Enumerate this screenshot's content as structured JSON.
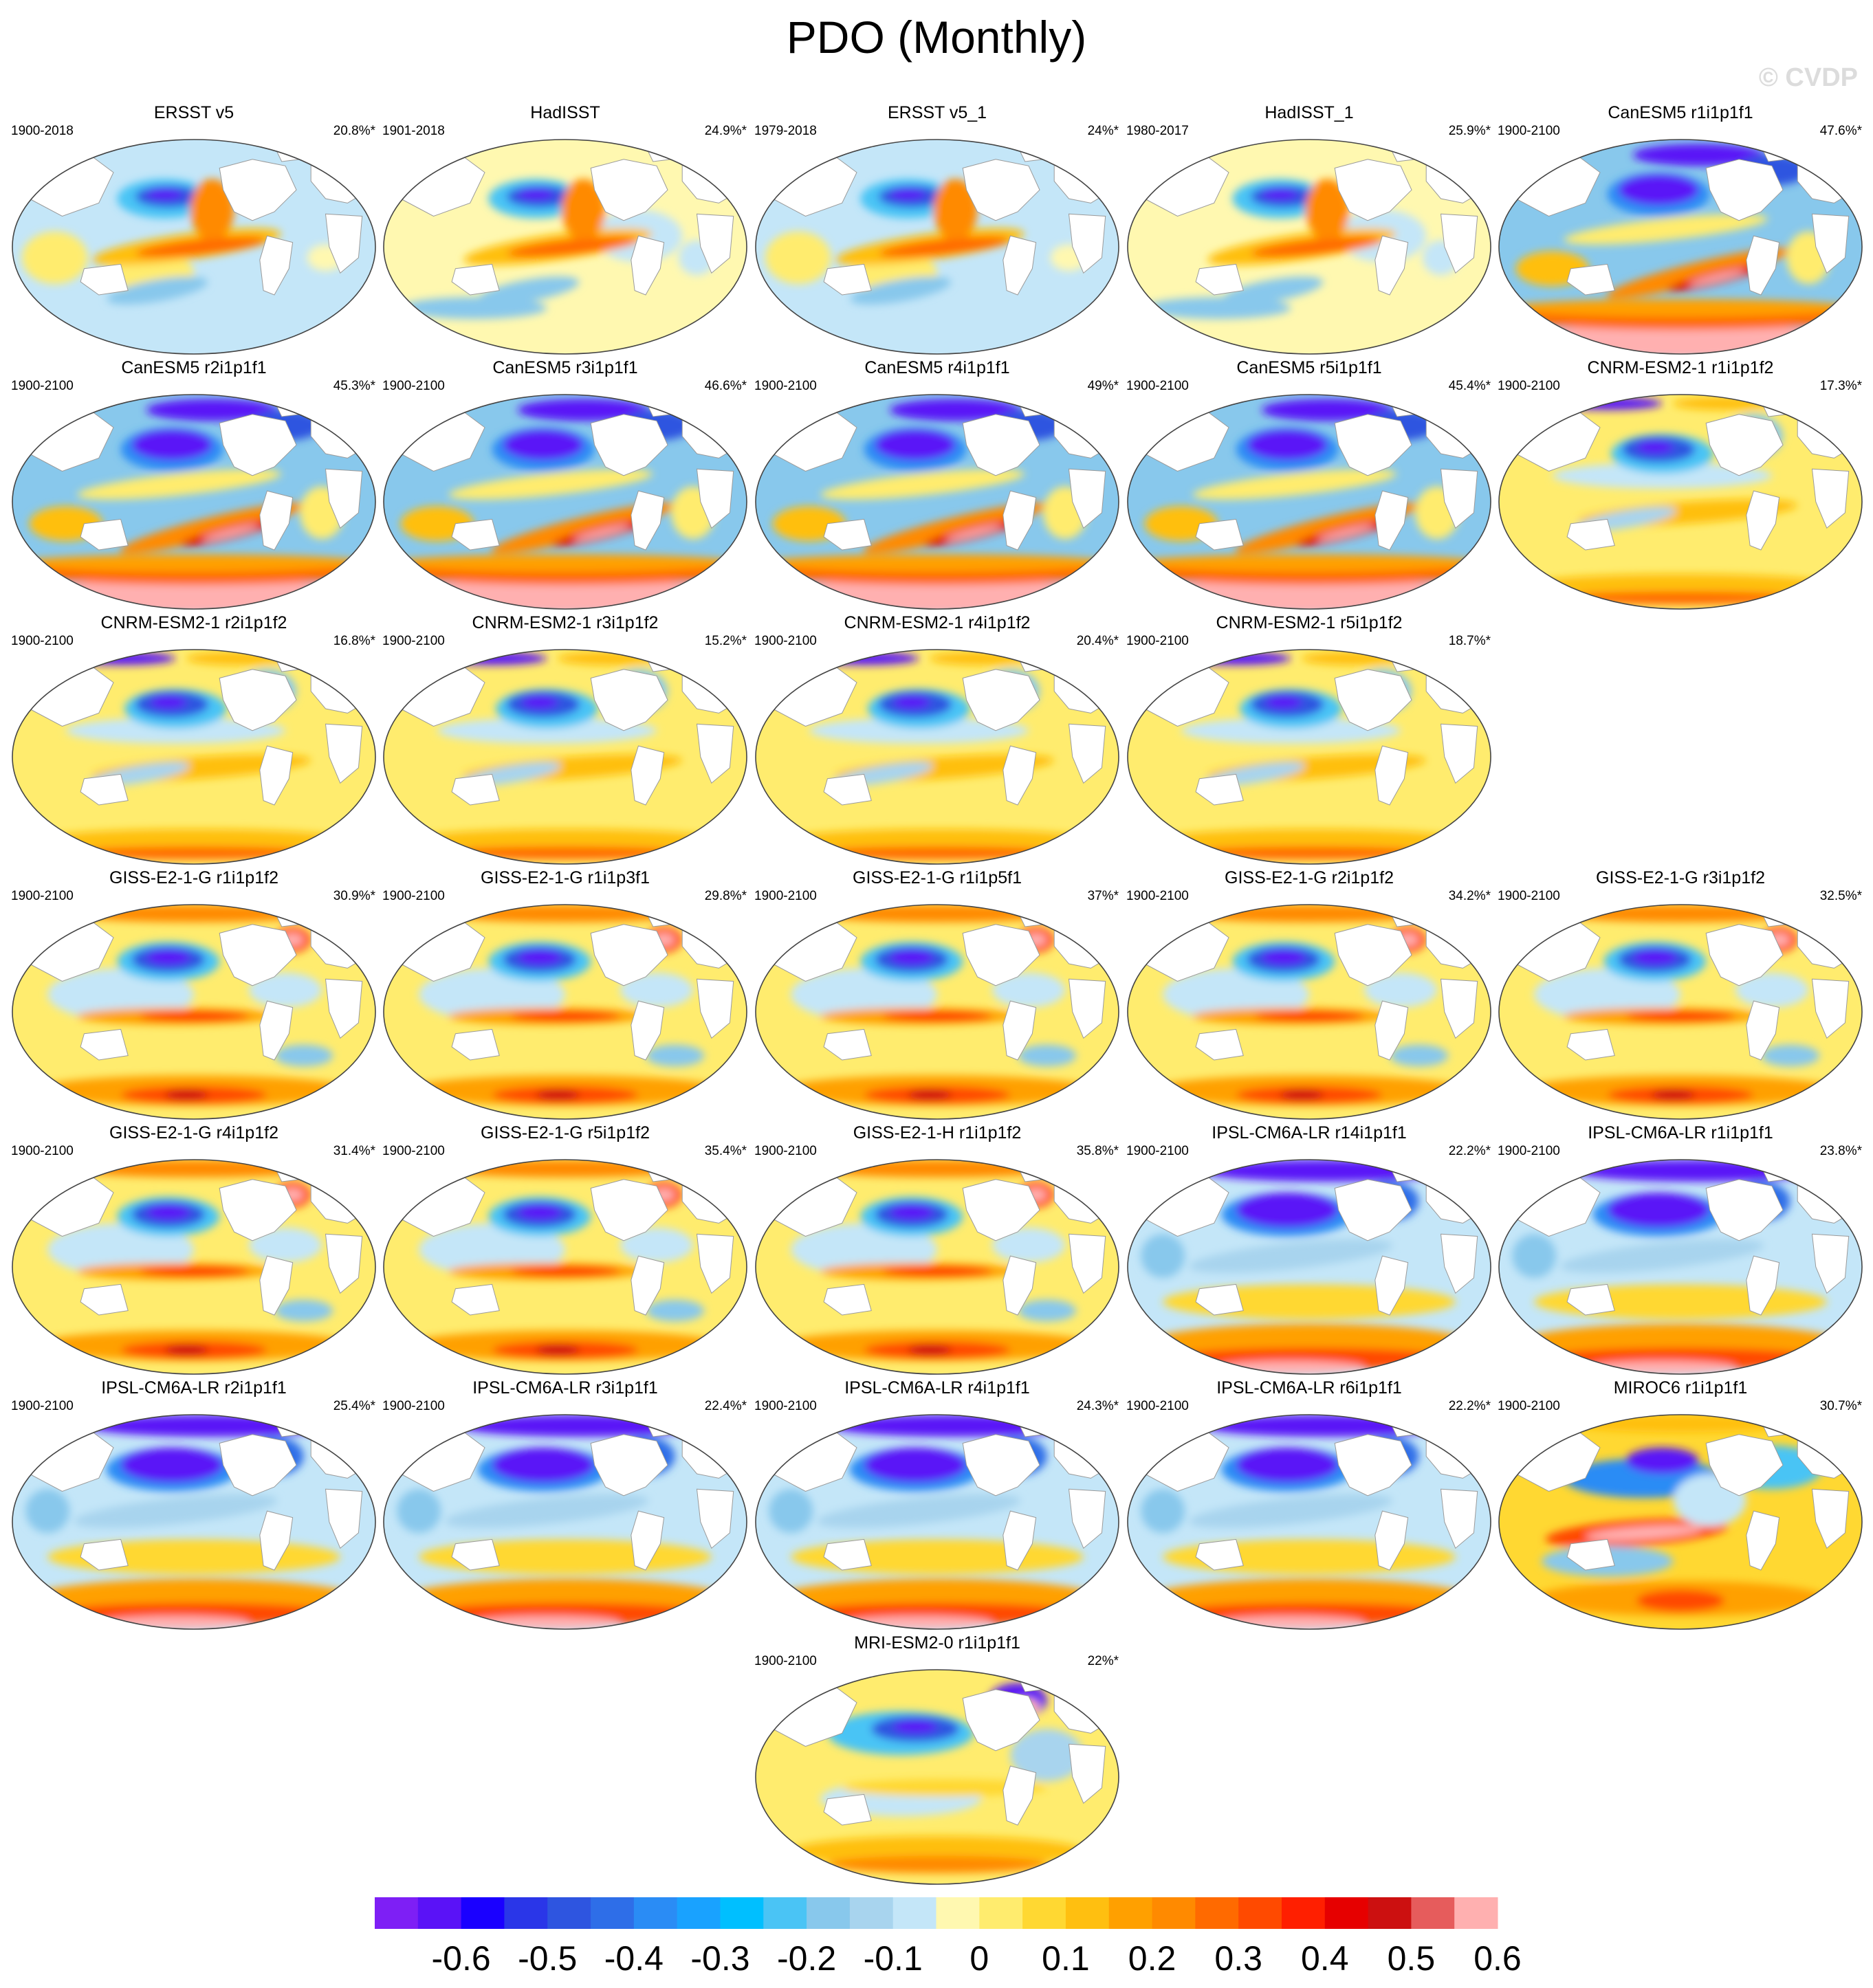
{
  "title": "PDO (Monthly)",
  "watermark": "© CVDP",
  "panels": [
    {
      "name": "ERSST v5",
      "years": "1900-2018",
      "pct": "20.8%*",
      "pattern": "obs"
    },
    {
      "name": "HadISST",
      "years": "1901-2018",
      "pct": "24.9%*",
      "pattern": "obs2"
    },
    {
      "name": "ERSST v5_1",
      "years": "1979-2018",
      "pct": "24%*",
      "pattern": "obs"
    },
    {
      "name": "HadISST_1",
      "years": "1980-2017",
      "pct": "25.9%*",
      "pattern": "obs2"
    },
    {
      "name": "CanESM5 r1i1p1f1",
      "years": "1900-2100",
      "pct": "47.6%*",
      "pattern": "canesm"
    },
    {
      "name": "CanESM5 r2i1p1f1",
      "years": "1900-2100",
      "pct": "45.3%*",
      "pattern": "canesm"
    },
    {
      "name": "CanESM5 r3i1p1f1",
      "years": "1900-2100",
      "pct": "46.6%*",
      "pattern": "canesm"
    },
    {
      "name": "CanESM5 r4i1p1f1",
      "years": "1900-2100",
      "pct": "49%*",
      "pattern": "canesm"
    },
    {
      "name": "CanESM5 r5i1p1f1",
      "years": "1900-2100",
      "pct": "45.4%*",
      "pattern": "canesm"
    },
    {
      "name": "CNRM-ESM2-1 r1i1p1f2",
      "years": "1900-2100",
      "pct": "17.3%*",
      "pattern": "cnrm"
    },
    {
      "name": "CNRM-ESM2-1 r2i1p1f2",
      "years": "1900-2100",
      "pct": "16.8%*",
      "pattern": "cnrm"
    },
    {
      "name": "CNRM-ESM2-1 r3i1p1f2",
      "years": "1900-2100",
      "pct": "15.2%*",
      "pattern": "cnrm"
    },
    {
      "name": "CNRM-ESM2-1 r4i1p1f2",
      "years": "1900-2100",
      "pct": "20.4%*",
      "pattern": "cnrm"
    },
    {
      "name": "CNRM-ESM2-1 r5i1p1f2",
      "years": "1900-2100",
      "pct": "18.7%*",
      "pattern": "cnrm"
    },
    null,
    {
      "name": "GISS-E2-1-G r1i1p1f2",
      "years": "1900-2100",
      "pct": "30.9%*",
      "pattern": "giss"
    },
    {
      "name": "GISS-E2-1-G r1i1p3f1",
      "years": "1900-2100",
      "pct": "29.8%*",
      "pattern": "giss"
    },
    {
      "name": "GISS-E2-1-G r1i1p5f1",
      "years": "1900-2100",
      "pct": "37%*",
      "pattern": "giss"
    },
    {
      "name": "GISS-E2-1-G r2i1p1f2",
      "years": "1900-2100",
      "pct": "34.2%*",
      "pattern": "giss"
    },
    {
      "name": "GISS-E2-1-G r3i1p1f2",
      "years": "1900-2100",
      "pct": "32.5%*",
      "pattern": "giss"
    },
    {
      "name": "GISS-E2-1-G r4i1p1f2",
      "years": "1900-2100",
      "pct": "31.4%*",
      "pattern": "giss"
    },
    {
      "name": "GISS-E2-1-G r5i1p1f2",
      "years": "1900-2100",
      "pct": "35.4%*",
      "pattern": "giss"
    },
    {
      "name": "GISS-E2-1-H r1i1p1f2",
      "years": "1900-2100",
      "pct": "35.8%*",
      "pattern": "giss"
    },
    {
      "name": "IPSL-CM6A-LR r14i1p1f1",
      "years": "1900-2100",
      "pct": "22.2%*",
      "pattern": "ipsl"
    },
    {
      "name": "IPSL-CM6A-LR r1i1p1f1",
      "years": "1900-2100",
      "pct": "23.8%*",
      "pattern": "ipsl"
    },
    {
      "name": "IPSL-CM6A-LR r2i1p1f1",
      "years": "1900-2100",
      "pct": "25.4%*",
      "pattern": "ipsl"
    },
    {
      "name": "IPSL-CM6A-LR r3i1p1f1",
      "years": "1900-2100",
      "pct": "22.4%*",
      "pattern": "ipsl"
    },
    {
      "name": "IPSL-CM6A-LR r4i1p1f1",
      "years": "1900-2100",
      "pct": "24.3%*",
      "pattern": "ipsl"
    },
    {
      "name": "IPSL-CM6A-LR r6i1p1f1",
      "years": "1900-2100",
      "pct": "22.2%*",
      "pattern": "ipsl"
    },
    {
      "name": "MIROC6 r1i1p1f1",
      "years": "1900-2100",
      "pct": "30.7%*",
      "pattern": "miroc"
    },
    null,
    null,
    {
      "name": "MRI-ESM2-0 r1i1p1f1",
      "years": "1900-2100",
      "pct": "22%*",
      "pattern": "mri"
    },
    null,
    null
  ],
  "colorbar": {
    "colors": [
      "#7e1ff5",
      "#5a12f7",
      "#1a00ff",
      "#2a36e8",
      "#2e55e0",
      "#2e6ee8",
      "#2a8cf5",
      "#19a2ff",
      "#00bfff",
      "#4ac4f5",
      "#88c8ec",
      "#a8d4ee",
      "#c4e6f8",
      "#fff8b0",
      "#ffec6e",
      "#ffd832",
      "#ffbf10",
      "#ffa000",
      "#ff8a00",
      "#ff6a00",
      "#ff4a00",
      "#ff1f00",
      "#e60000",
      "#cc1010",
      "#e65c5c",
      "#ffb0b0"
    ],
    "labels": [
      "-0.6",
      "-0.5",
      "-0.4",
      "-0.3",
      "-0.2",
      "-0.1",
      "0",
      "0.1",
      "0.2",
      "0.3",
      "0.4",
      "0.5",
      "0.6"
    ]
  }
}
